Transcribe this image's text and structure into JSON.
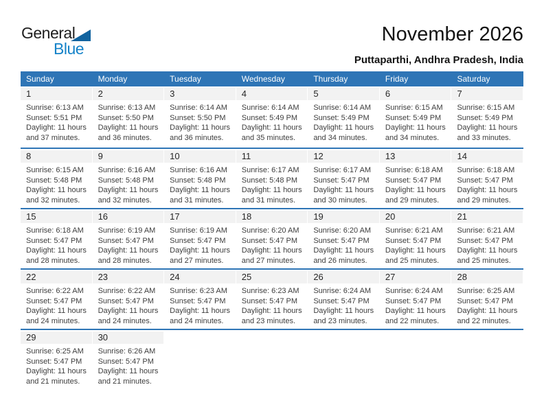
{
  "header": {
    "logo_part1": "General",
    "logo_part2": "Blue",
    "title": "November 2026",
    "subtitle": "Puttaparthi, Andhra Pradesh, India"
  },
  "colors": {
    "header_blue": "#2e75b6",
    "row_border_blue": "#2e75b6",
    "day_strip_gray": "#f2f2f2",
    "logo_text_blue": "#1482c8",
    "logo_triangle_blue": "#11639f"
  },
  "calendar": {
    "weekday_headers": [
      "Sunday",
      "Monday",
      "Tuesday",
      "Wednesday",
      "Thursday",
      "Friday",
      "Saturday"
    ],
    "weeks": [
      [
        {
          "day": "1",
          "lines": [
            "Sunrise: 6:13 AM",
            "Sunset: 5:51 PM",
            "Daylight: 11 hours",
            "and 37 minutes."
          ]
        },
        {
          "day": "2",
          "lines": [
            "Sunrise: 6:13 AM",
            "Sunset: 5:50 PM",
            "Daylight: 11 hours",
            "and 36 minutes."
          ]
        },
        {
          "day": "3",
          "lines": [
            "Sunrise: 6:14 AM",
            "Sunset: 5:50 PM",
            "Daylight: 11 hours",
            "and 36 minutes."
          ]
        },
        {
          "day": "4",
          "lines": [
            "Sunrise: 6:14 AM",
            "Sunset: 5:49 PM",
            "Daylight: 11 hours",
            "and 35 minutes."
          ]
        },
        {
          "day": "5",
          "lines": [
            "Sunrise: 6:14 AM",
            "Sunset: 5:49 PM",
            "Daylight: 11 hours",
            "and 34 minutes."
          ]
        },
        {
          "day": "6",
          "lines": [
            "Sunrise: 6:15 AM",
            "Sunset: 5:49 PM",
            "Daylight: 11 hours",
            "and 34 minutes."
          ]
        },
        {
          "day": "7",
          "lines": [
            "Sunrise: 6:15 AM",
            "Sunset: 5:49 PM",
            "Daylight: 11 hours",
            "and 33 minutes."
          ]
        }
      ],
      [
        {
          "day": "8",
          "lines": [
            "Sunrise: 6:15 AM",
            "Sunset: 5:48 PM",
            "Daylight: 11 hours",
            "and 32 minutes."
          ]
        },
        {
          "day": "9",
          "lines": [
            "Sunrise: 6:16 AM",
            "Sunset: 5:48 PM",
            "Daylight: 11 hours",
            "and 32 minutes."
          ]
        },
        {
          "day": "10",
          "lines": [
            "Sunrise: 6:16 AM",
            "Sunset: 5:48 PM",
            "Daylight: 11 hours",
            "and 31 minutes."
          ]
        },
        {
          "day": "11",
          "lines": [
            "Sunrise: 6:17 AM",
            "Sunset: 5:48 PM",
            "Daylight: 11 hours",
            "and 31 minutes."
          ]
        },
        {
          "day": "12",
          "lines": [
            "Sunrise: 6:17 AM",
            "Sunset: 5:47 PM",
            "Daylight: 11 hours",
            "and 30 minutes."
          ]
        },
        {
          "day": "13",
          "lines": [
            "Sunrise: 6:18 AM",
            "Sunset: 5:47 PM",
            "Daylight: 11 hours",
            "and 29 minutes."
          ]
        },
        {
          "day": "14",
          "lines": [
            "Sunrise: 6:18 AM",
            "Sunset: 5:47 PM",
            "Daylight: 11 hours",
            "and 29 minutes."
          ]
        }
      ],
      [
        {
          "day": "15",
          "lines": [
            "Sunrise: 6:18 AM",
            "Sunset: 5:47 PM",
            "Daylight: 11 hours",
            "and 28 minutes."
          ]
        },
        {
          "day": "16",
          "lines": [
            "Sunrise: 6:19 AM",
            "Sunset: 5:47 PM",
            "Daylight: 11 hours",
            "and 28 minutes."
          ]
        },
        {
          "day": "17",
          "lines": [
            "Sunrise: 6:19 AM",
            "Sunset: 5:47 PM",
            "Daylight: 11 hours",
            "and 27 minutes."
          ]
        },
        {
          "day": "18",
          "lines": [
            "Sunrise: 6:20 AM",
            "Sunset: 5:47 PM",
            "Daylight: 11 hours",
            "and 27 minutes."
          ]
        },
        {
          "day": "19",
          "lines": [
            "Sunrise: 6:20 AM",
            "Sunset: 5:47 PM",
            "Daylight: 11 hours",
            "and 26 minutes."
          ]
        },
        {
          "day": "20",
          "lines": [
            "Sunrise: 6:21 AM",
            "Sunset: 5:47 PM",
            "Daylight: 11 hours",
            "and 25 minutes."
          ]
        },
        {
          "day": "21",
          "lines": [
            "Sunrise: 6:21 AM",
            "Sunset: 5:47 PM",
            "Daylight: 11 hours",
            "and 25 minutes."
          ]
        }
      ],
      [
        {
          "day": "22",
          "lines": [
            "Sunrise: 6:22 AM",
            "Sunset: 5:47 PM",
            "Daylight: 11 hours",
            "and 24 minutes."
          ]
        },
        {
          "day": "23",
          "lines": [
            "Sunrise: 6:22 AM",
            "Sunset: 5:47 PM",
            "Daylight: 11 hours",
            "and 24 minutes."
          ]
        },
        {
          "day": "24",
          "lines": [
            "Sunrise: 6:23 AM",
            "Sunset: 5:47 PM",
            "Daylight: 11 hours",
            "and 24 minutes."
          ]
        },
        {
          "day": "25",
          "lines": [
            "Sunrise: 6:23 AM",
            "Sunset: 5:47 PM",
            "Daylight: 11 hours",
            "and 23 minutes."
          ]
        },
        {
          "day": "26",
          "lines": [
            "Sunrise: 6:24 AM",
            "Sunset: 5:47 PM",
            "Daylight: 11 hours",
            "and 23 minutes."
          ]
        },
        {
          "day": "27",
          "lines": [
            "Sunrise: 6:24 AM",
            "Sunset: 5:47 PM",
            "Daylight: 11 hours",
            "and 22 minutes."
          ]
        },
        {
          "day": "28",
          "lines": [
            "Sunrise: 6:25 AM",
            "Sunset: 5:47 PM",
            "Daylight: 11 hours",
            "and 22 minutes."
          ]
        }
      ],
      [
        {
          "day": "29",
          "lines": [
            "Sunrise: 6:25 AM",
            "Sunset: 5:47 PM",
            "Daylight: 11 hours",
            "and 21 minutes."
          ]
        },
        {
          "day": "30",
          "lines": [
            "Sunrise: 6:26 AM",
            "Sunset: 5:47 PM",
            "Daylight: 11 hours",
            "and 21 minutes."
          ]
        },
        null,
        null,
        null,
        null,
        null
      ]
    ]
  }
}
